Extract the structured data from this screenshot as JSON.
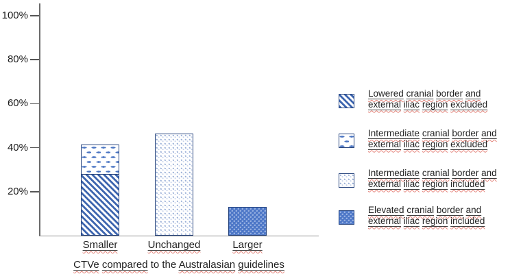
{
  "chart_data": {
    "type": "bar",
    "subtype": "stacked",
    "title": "",
    "xlabel": "CTVe compared to the Australasian guidelines",
    "ylabel": "",
    "ylim": [
      0,
      100
    ],
    "grid": false,
    "legend_position": "right",
    "ytick_labels": [
      "100%",
      "80%",
      "60%",
      "40%",
      "20%"
    ],
    "ytick_values": [
      100,
      80,
      60,
      40,
      20
    ],
    "categories": [
      "Smaller",
      "Unchanged",
      "Larger"
    ],
    "series": [
      {
        "name": "Lowered cranial border and external iliac region excluded",
        "pattern": "diagonal-stripes",
        "values": [
          27.8,
          0,
          0
        ]
      },
      {
        "name": "Intermediate cranial border and external iliac region excluded",
        "pattern": "horizontal-dashes",
        "values": [
          13.6,
          0,
          0
        ]
      },
      {
        "name": "Intermediate cranial border and external iliac region included",
        "pattern": "light-dots",
        "values": [
          0,
          46.5,
          0
        ]
      },
      {
        "name": "Elevated cranial border and external iliac region included",
        "pattern": "solid-blue-dots",
        "values": [
          0,
          0,
          13.1
        ]
      }
    ]
  },
  "xaxis": {
    "title_segments": [
      [
        "CTVe compared",
        "us"
      ],
      [
        " to the ",
        "p"
      ],
      [
        "Australasian guidelines",
        "us"
      ]
    ]
  },
  "legend": {
    "items": [
      {
        "pattern": "diagonal-stripes",
        "lines": [
          "Lowered cranial border and",
          "external iliac region excluded"
        ]
      },
      {
        "pattern": "horizontal-dashes",
        "lines": [
          "Intermediate cranial border and",
          "external iliac region excluded"
        ]
      },
      {
        "pattern": "light-dots",
        "lines": [
          "Intermediate cranial border and",
          "external iliac region included"
        ]
      },
      {
        "pattern": "solid-blue-dots",
        "lines": [
          "Elevated cranial border and",
          "external iliac region included"
        ]
      }
    ]
  },
  "colors": {
    "stripe_blue": "#3e66af",
    "dash_blue": "#4a74c2",
    "light_dot_blue": "#98aed6",
    "solid_bar_blue": "#4d77c7",
    "bar_border_navy": "#24427c",
    "axis_gray": "#8f8f8f",
    "tick_gray": "#555555",
    "text_black": "#1f1f1f",
    "underline_black": "#3c3c3c",
    "squiggle_red": "#e4837a"
  }
}
